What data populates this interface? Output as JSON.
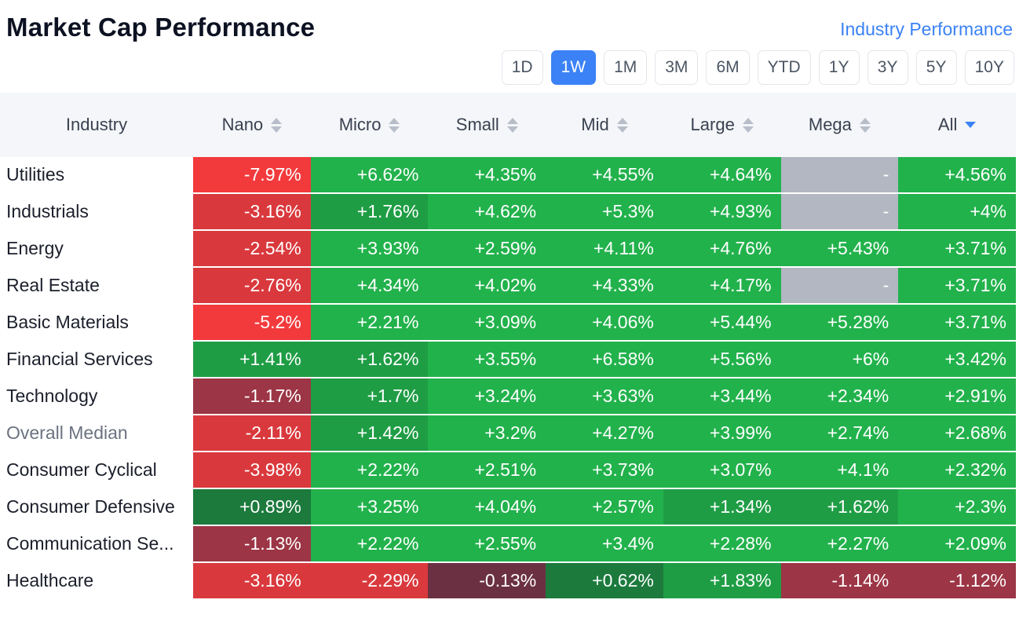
{
  "header": {
    "title": "Market Cap Performance",
    "link": "Industry Performance"
  },
  "range_buttons": [
    {
      "label": "1D",
      "active": false
    },
    {
      "label": "1W",
      "active": true
    },
    {
      "label": "1M",
      "active": false
    },
    {
      "label": "3M",
      "active": false
    },
    {
      "label": "6M",
      "active": false
    },
    {
      "label": "YTD",
      "active": false
    },
    {
      "label": "1Y",
      "active": false
    },
    {
      "label": "3Y",
      "active": false
    },
    {
      "label": "5Y",
      "active": false
    },
    {
      "label": "10Y",
      "active": false
    }
  ],
  "table": {
    "industry_header": "Industry",
    "columns": [
      {
        "label": "Nano",
        "sort": "none"
      },
      {
        "label": "Micro",
        "sort": "none"
      },
      {
        "label": "Small",
        "sort": "none"
      },
      {
        "label": "Mid",
        "sort": "none"
      },
      {
        "label": "Large",
        "sort": "none"
      },
      {
        "label": "Mega",
        "sort": "none"
      },
      {
        "label": "All",
        "sort": "desc"
      }
    ],
    "rows": [
      {
        "industry": "Utilities",
        "values": [
          "-7.97%",
          "+6.62%",
          "+4.35%",
          "+4.55%",
          "+4.64%",
          "-",
          "+4.56%"
        ]
      },
      {
        "industry": "Industrials",
        "values": [
          "-3.16%",
          "+1.76%",
          "+4.62%",
          "+5.3%",
          "+4.93%",
          "-",
          "+4%"
        ]
      },
      {
        "industry": "Energy",
        "values": [
          "-2.54%",
          "+3.93%",
          "+2.59%",
          "+4.11%",
          "+4.76%",
          "+5.43%",
          "+3.71%"
        ]
      },
      {
        "industry": "Real Estate",
        "values": [
          "-2.76%",
          "+4.34%",
          "+4.02%",
          "+4.33%",
          "+4.17%",
          "-",
          "+3.71%"
        ]
      },
      {
        "industry": "Basic Materials",
        "values": [
          "-5.2%",
          "+2.21%",
          "+3.09%",
          "+4.06%",
          "+5.44%",
          "+5.28%",
          "+3.71%"
        ]
      },
      {
        "industry": "Financial Services",
        "values": [
          "+1.41%",
          "+1.62%",
          "+3.55%",
          "+6.58%",
          "+5.56%",
          "+6%",
          "+3.42%"
        ]
      },
      {
        "industry": "Technology",
        "values": [
          "-1.17%",
          "+1.7%",
          "+3.24%",
          "+3.63%",
          "+3.44%",
          "+2.34%",
          "+2.91%"
        ]
      },
      {
        "industry": "Overall Median",
        "values": [
          "-2.11%",
          "+1.42%",
          "+3.2%",
          "+4.27%",
          "+3.99%",
          "+2.74%",
          "+2.68%"
        ],
        "muted": true
      },
      {
        "industry": "Consumer Cyclical",
        "values": [
          "-3.98%",
          "+2.22%",
          "+2.51%",
          "+3.73%",
          "+3.07%",
          "+4.1%",
          "+2.32%"
        ]
      },
      {
        "industry": "Consumer Defensive",
        "values": [
          "+0.89%",
          "+3.25%",
          "+4.04%",
          "+2.57%",
          "+1.34%",
          "+1.62%",
          "+2.3%"
        ]
      },
      {
        "industry": "Communication Se...",
        "values": [
          "-1.13%",
          "+2.22%",
          "+2.55%",
          "+3.4%",
          "+2.28%",
          "+2.27%",
          "+2.09%"
        ]
      },
      {
        "industry": "Healthcare",
        "values": [
          "-3.16%",
          "-2.29%",
          "-0.13%",
          "+0.62%",
          "+1.83%",
          "-1.14%",
          "-1.12%"
        ]
      }
    ]
  },
  "colors": {
    "green_strong": "#22b24c",
    "green_mid": "#1f9d45",
    "green_dark": "#1c7a3d",
    "red_strong": "#f23a3c",
    "red_mid": "#d9393d",
    "red_dark": "#9c3545",
    "red_muted": "#6b3142",
    "neutral": "#b3b7c2",
    "accent": "#3b82f6"
  }
}
